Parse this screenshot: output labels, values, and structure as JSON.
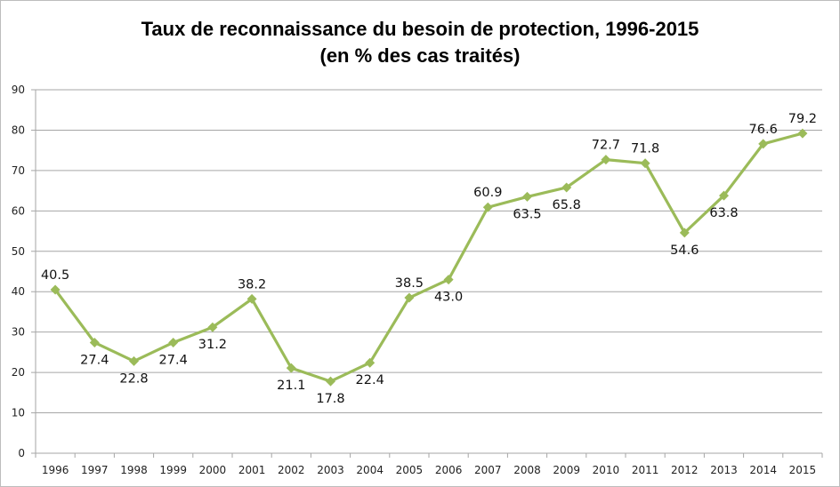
{
  "chart_data": {
    "type": "line",
    "title": "Taux de reconnaissance du besoin de protection, 1996-2015",
    "subtitle": "(en % des cas traités)",
    "xlabel": "",
    "ylabel": "",
    "ylim": [
      0,
      90
    ],
    "yticks": [
      0,
      10,
      20,
      30,
      40,
      50,
      60,
      70,
      80,
      90
    ],
    "grid": true,
    "legend": "none",
    "categories": [
      "1996",
      "1997",
      "1998",
      "1999",
      "2000",
      "2001",
      "2002",
      "2003",
      "2004",
      "2005",
      "2006",
      "2007",
      "2008",
      "2009",
      "2010",
      "2011",
      "2012",
      "2013",
      "2014",
      "2015"
    ],
    "series": [
      {
        "name": "Taux de reconnaissance",
        "color": "#9bbb59",
        "marker": "diamond",
        "values": [
          40.5,
          27.4,
          22.8,
          27.4,
          31.2,
          38.2,
          21.1,
          17.8,
          22.4,
          38.5,
          43.0,
          60.9,
          63.5,
          65.8,
          72.7,
          71.8,
          54.6,
          63.8,
          76.6,
          79.2
        ],
        "labels": [
          "40.5",
          "27.4",
          "22.8",
          "27.4",
          "31.2",
          "38.2",
          "21.1",
          "17.8",
          "22.4",
          "38.5",
          "43.0",
          "60.9",
          "63.5",
          "65.8",
          "72.7",
          "71.8",
          "54.6",
          "63.8",
          "76.6",
          "79.2"
        ],
        "label_positions": [
          "above",
          "below",
          "below",
          "below",
          "below",
          "above",
          "below",
          "below",
          "below",
          "above",
          "below",
          "above",
          "below",
          "below",
          "above",
          "above",
          "below",
          "below",
          "above",
          "above"
        ]
      }
    ]
  }
}
